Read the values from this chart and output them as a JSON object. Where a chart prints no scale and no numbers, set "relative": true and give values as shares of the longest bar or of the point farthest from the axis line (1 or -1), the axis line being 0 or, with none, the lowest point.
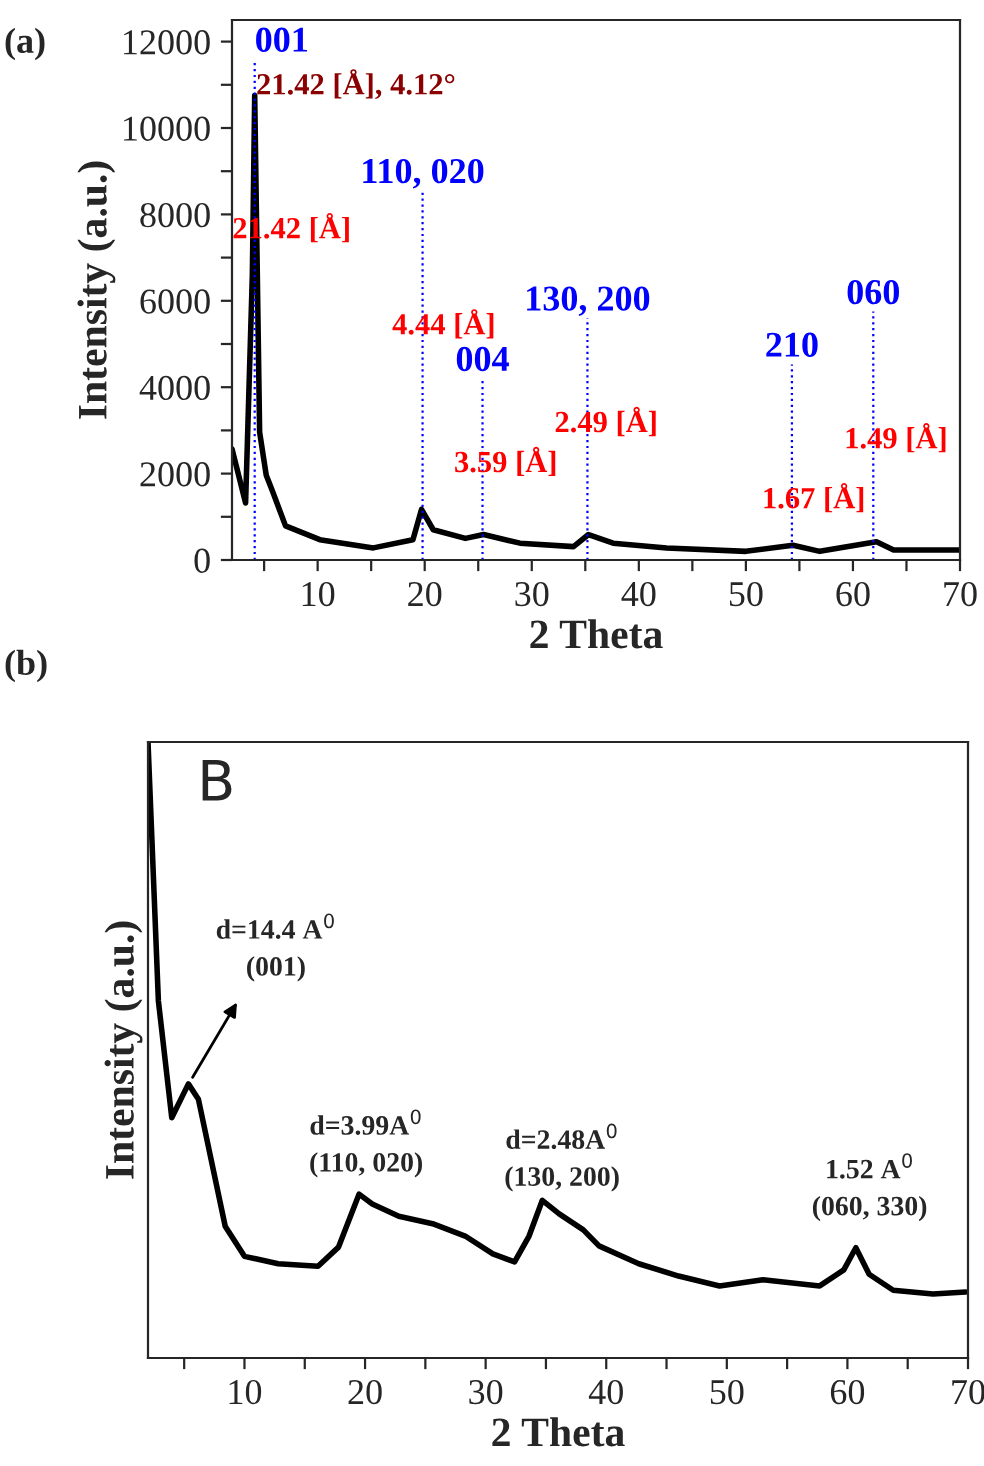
{
  "chart_data": [
    {
      "type": "line",
      "title": "(a)",
      "xlabel": "2 Theta",
      "ylabel": "Intensity (a.u.)",
      "x": [
        2,
        3.27,
        3.9,
        4.12,
        4.58,
        5.2,
        5.83,
        7.0,
        10.2,
        15.2,
        18.9,
        19.7,
        20.8,
        23.8,
        25.5,
        28.9,
        33.9,
        35.3,
        37.6,
        42.6,
        50.0,
        54.4,
        56.9,
        62.2,
        63.8,
        70
      ],
      "series": [
        {
          "color": "#000000",
          "values": [
            2570,
            1320,
            6600,
            10750,
            2960,
            1960,
            1560,
            790,
            470,
            280,
            470,
            1170,
            700,
            500,
            590,
            390,
            310,
            590,
            390,
            280,
            200,
            340,
            200,
            420,
            230,
            230
          ]
        }
      ],
      "xlim": [
        2,
        70
      ],
      "ylim": [
        0,
        12500
      ],
      "xticks": [
        {
          "value": 5,
          "label": null
        },
        10,
        {
          "value": 15,
          "label": null
        },
        20,
        {
          "value": 25,
          "label": null
        },
        30,
        {
          "value": 35,
          "label": null
        },
        40,
        {
          "value": 45,
          "label": null
        },
        50,
        {
          "value": 55,
          "label": null
        },
        60,
        {
          "value": 65,
          "label": null
        },
        70
      ],
      "yticks": [
        0,
        {
          "value": 1000,
          "label": null
        },
        2000,
        {
          "value": 3000,
          "label": null
        },
        4000,
        {
          "value": 5000,
          "label": null
        },
        6000,
        {
          "value": 7000,
          "label": null
        },
        8000,
        {
          "value": 9000,
          "label": null
        },
        10000,
        {
          "value": 11000,
          "label": null
        },
        12000
      ],
      "ref_lines": [
        {
          "axis": "x",
          "value": 4.12,
          "color": "#0000ff",
          "line_style": "dotted"
        },
        {
          "axis": "x",
          "value": 19.8,
          "color": "#0000ff",
          "line_style": "dotted"
        },
        {
          "axis": "x",
          "value": 25.4,
          "color": "#0000ff",
          "line_style": "dotted"
        },
        {
          "axis": "x",
          "value": 35.2,
          "color": "#0000ff",
          "line_style": "dotted"
        },
        {
          "axis": "x",
          "value": 54.3,
          "color": "#0000ff",
          "line_style": "dotted"
        },
        {
          "axis": "x",
          "value": 61.9,
          "color": "#0000ff",
          "line_style": "dotted"
        }
      ],
      "annotations": [
        {
          "text": "001",
          "x": 4.12,
          "y": 11590
        },
        {
          "text": "110, 020",
          "x": 19.8,
          "y": 8550
        },
        {
          "text": "004",
          "x": 25.4,
          "y": 4200
        },
        {
          "text": "130, 200",
          "x": 35.2,
          "y": 5600
        },
        {
          "text": "210",
          "x": 54.3,
          "y": 4530
        },
        {
          "text": "060",
          "x": 61.9,
          "y": 5750
        },
        "21.42 [Å], 4.12°",
        "21.42 [Å]",
        "4.44 [Å]",
        "3.59 [Å]",
        "2.49 [Å]",
        "1.67 [Å]",
        "1.49 [Å]"
      ],
      "grid": false
    },
    {
      "type": "line",
      "title": "(b)",
      "xlabel": "2 Theta",
      "ylabel": "Intensity (a.u.)",
      "relative": true,
      "x": [
        2,
        2.86,
        3.97,
        5.35,
        6.18,
        8.4,
        10,
        12.8,
        16.1,
        17.8,
        19.5,
        20.6,
        22.8,
        25.6,
        28.3,
        30.6,
        32.4,
        33.6,
        34.7,
        36.1,
        38.1,
        39.4,
        42.7,
        46.0,
        49.4,
        53.0,
        57.7,
        59.7,
        60.7,
        61.8,
        63.8,
        67.1,
        69.8
      ],
      "series": [
        {
          "color": "#000000",
          "values": [
            1.0,
            0.58,
            0.39,
            0.445,
            0.42,
            0.214,
            0.165,
            0.153,
            0.149,
            0.18,
            0.266,
            0.25,
            0.23,
            0.218,
            0.198,
            0.169,
            0.156,
            0.198,
            0.256,
            0.234,
            0.208,
            0.182,
            0.153,
            0.133,
            0.117,
            0.127,
            0.117,
            0.143,
            0.179,
            0.136,
            0.11,
            0.104,
            0.107
          ]
        }
      ],
      "xlim": [
        2,
        70
      ],
      "xticks": [
        {
          "value": 5,
          "label": null
        },
        10,
        {
          "value": 15,
          "label": null
        },
        20,
        {
          "value": 25,
          "label": null
        },
        30,
        {
          "value": 35,
          "label": null
        },
        40,
        {
          "value": 45,
          "label": null
        },
        50,
        {
          "value": 55,
          "label": null
        },
        60,
        {
          "value": 65,
          "label": null
        },
        70
      ],
      "annotations": [
        "B",
        "d=14.4 A$^{0}$\n(001)",
        "d=3.99A$^{0}$\n(110, 020)",
        "d=2.48A$^{0}$\n(130, 200)",
        "1.52 A$^{0}$\n(060, 330)"
      ],
      "grid": false
    }
  ]
}
